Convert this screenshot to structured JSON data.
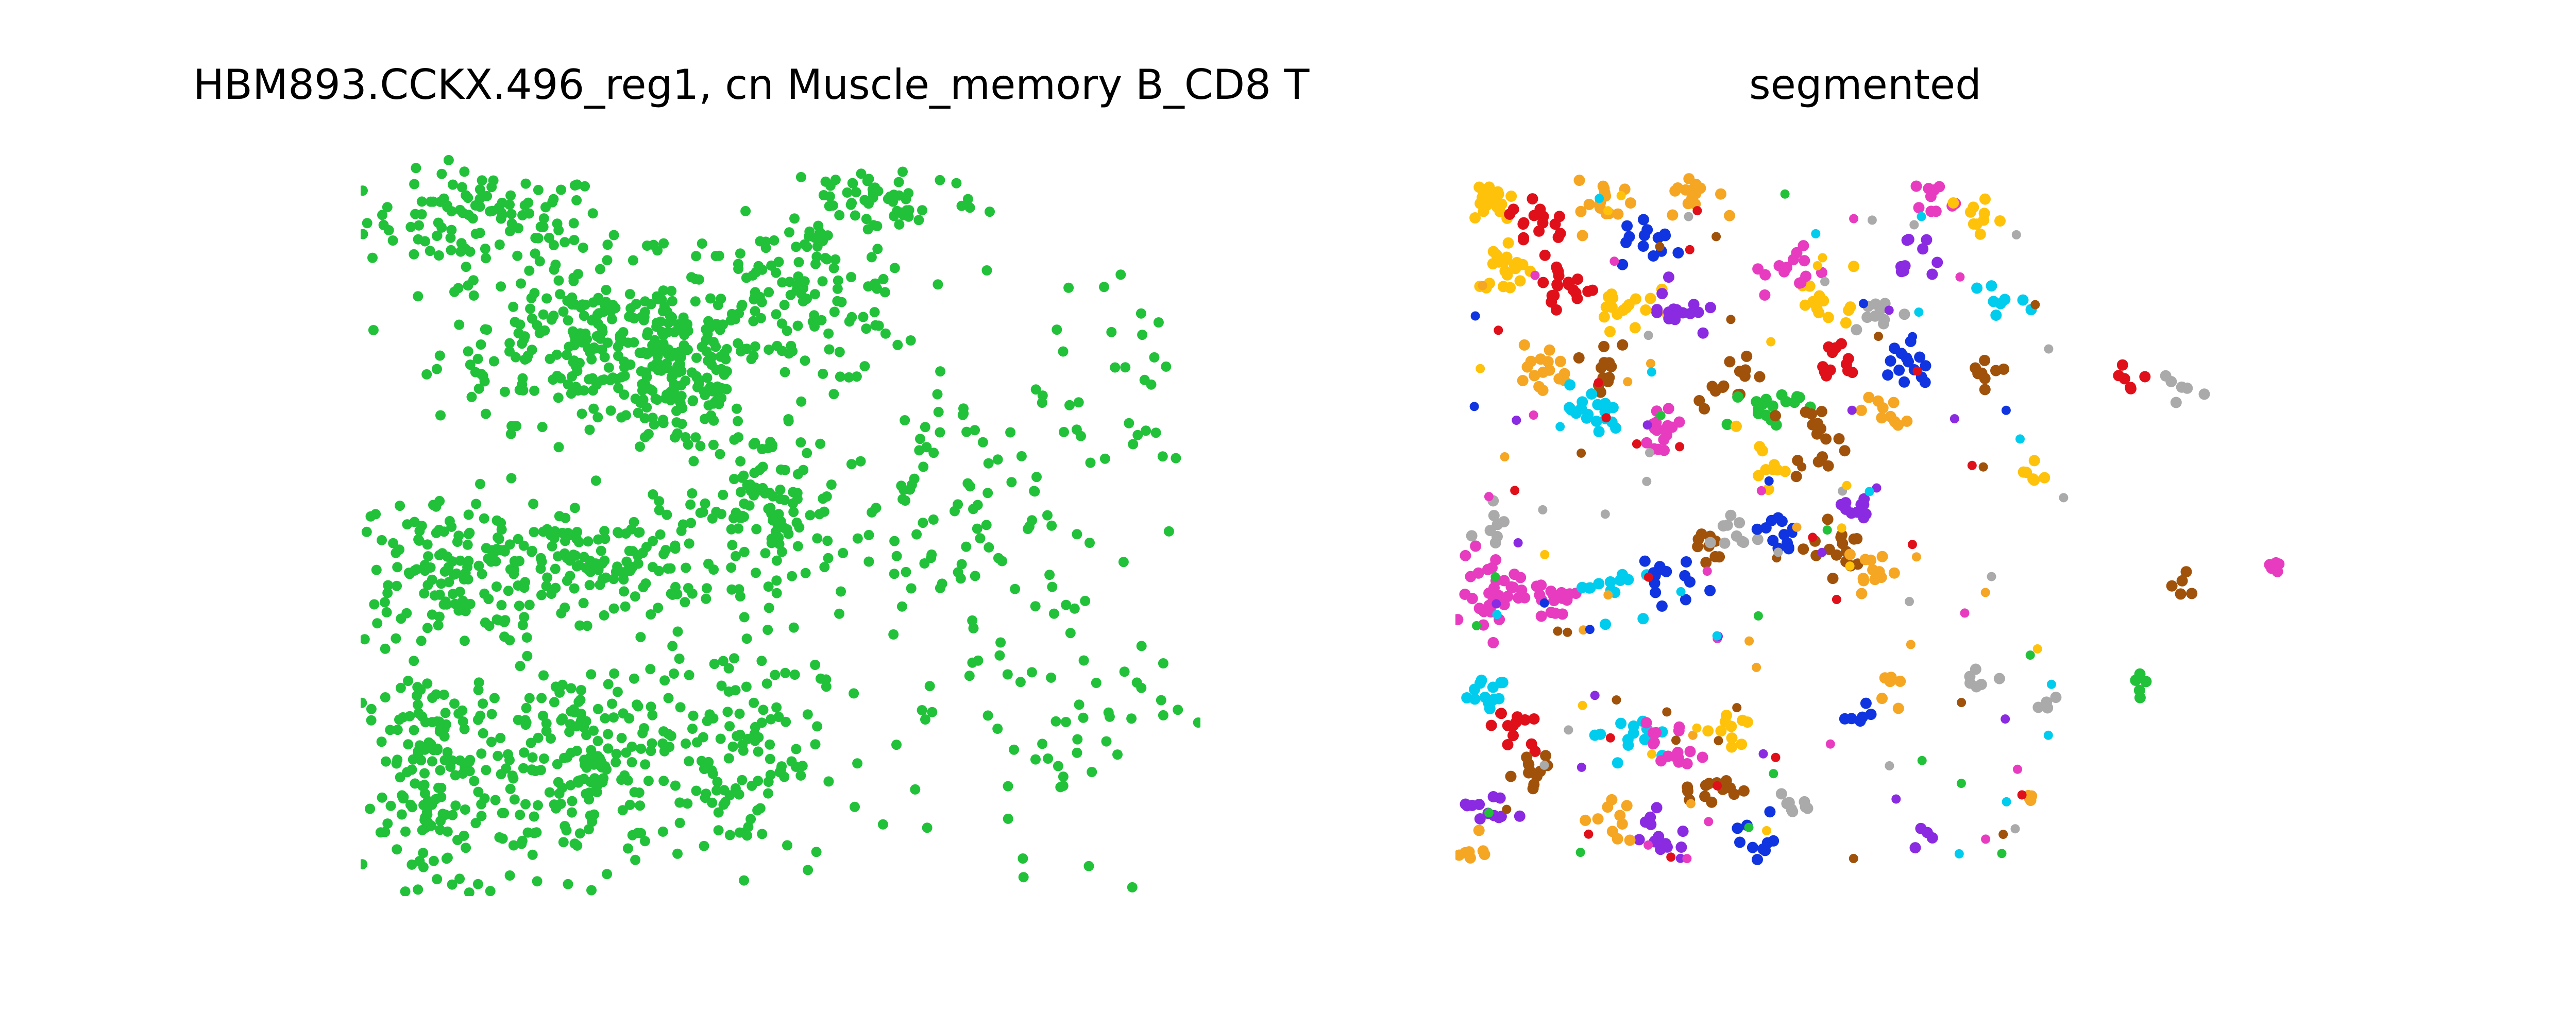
{
  "chart_data": [
    {
      "type": "scatter",
      "title": "HBM893.CCKX.496_reg1, cn Muscle_memory B_CD8 T",
      "axes_visible": false,
      "grid": false,
      "marker_color": "#22c13a",
      "xlim": [
        0,
        1
      ],
      "ylim": [
        0,
        1
      ],
      "density_regions": [
        {
          "cx": 0.15,
          "cy": 0.91,
          "rx": 0.13,
          "ry": 0.06,
          "n": 110
        },
        {
          "cx": 0.27,
          "cy": 0.75,
          "rx": 0.16,
          "ry": 0.1,
          "n": 230
        },
        {
          "cx": 0.38,
          "cy": 0.7,
          "rx": 0.08,
          "ry": 0.1,
          "n": 140
        },
        {
          "cx": 0.52,
          "cy": 0.8,
          "rx": 0.13,
          "ry": 0.1,
          "n": 130
        },
        {
          "cx": 0.62,
          "cy": 0.94,
          "rx": 0.11,
          "ry": 0.05,
          "n": 60
        },
        {
          "cx": 0.1,
          "cy": 0.44,
          "rx": 0.12,
          "ry": 0.09,
          "n": 150
        },
        {
          "cx": 0.3,
          "cy": 0.45,
          "rx": 0.12,
          "ry": 0.07,
          "n": 120
        },
        {
          "cx": 0.48,
          "cy": 0.52,
          "rx": 0.08,
          "ry": 0.1,
          "n": 110
        },
        {
          "cx": 0.09,
          "cy": 0.15,
          "rx": 0.08,
          "ry": 0.16,
          "n": 170
        },
        {
          "cx": 0.27,
          "cy": 0.18,
          "rx": 0.12,
          "ry": 0.14,
          "n": 200
        },
        {
          "cx": 0.45,
          "cy": 0.2,
          "rx": 0.09,
          "ry": 0.14,
          "n": 110
        },
        {
          "cx": 0.68,
          "cy": 0.52,
          "rx": 0.12,
          "ry": 0.14,
          "n": 70
        },
        {
          "cx": 0.8,
          "cy": 0.3,
          "rx": 0.16,
          "ry": 0.28,
          "n": 90
        },
        {
          "cx": 0.9,
          "cy": 0.7,
          "rx": 0.1,
          "ry": 0.2,
          "n": 30
        }
      ]
    },
    {
      "type": "scatter",
      "title": "segmented",
      "axes_visible": false,
      "grid": false,
      "segment_colors": [
        "#f5a623",
        "#1035e0",
        "#8a2be2",
        "#aaaaaa",
        "#22c13a",
        "#00ccee",
        "#ffc20a",
        "#e83cc0",
        "#e0101a",
        "#a0520a"
      ],
      "xlim": [
        0,
        1
      ],
      "ylim": [
        0,
        1
      ],
      "clusters": [
        {
          "cx": 0.04,
          "cy": 0.94,
          "r": 0.025,
          "n": 20,
          "c": 6
        },
        {
          "cx": 0.1,
          "cy": 0.91,
          "r": 0.03,
          "n": 18,
          "c": 8
        },
        {
          "cx": 0.18,
          "cy": 0.93,
          "r": 0.03,
          "n": 16,
          "c": 0
        },
        {
          "cx": 0.28,
          "cy": 0.95,
          "r": 0.025,
          "n": 14,
          "c": 0
        },
        {
          "cx": 0.23,
          "cy": 0.88,
          "r": 0.03,
          "n": 14,
          "c": 1
        },
        {
          "cx": 0.06,
          "cy": 0.85,
          "r": 0.03,
          "n": 22,
          "c": 6
        },
        {
          "cx": 0.13,
          "cy": 0.82,
          "r": 0.03,
          "n": 20,
          "c": 8
        },
        {
          "cx": 0.2,
          "cy": 0.8,
          "r": 0.03,
          "n": 18,
          "c": 6
        },
        {
          "cx": 0.26,
          "cy": 0.79,
          "r": 0.03,
          "n": 16,
          "c": 2
        },
        {
          "cx": 0.18,
          "cy": 0.72,
          "r": 0.025,
          "n": 12,
          "c": 9
        },
        {
          "cx": 0.1,
          "cy": 0.71,
          "r": 0.03,
          "n": 16,
          "c": 0
        },
        {
          "cx": 0.16,
          "cy": 0.65,
          "r": 0.03,
          "n": 18,
          "c": 5
        },
        {
          "cx": 0.24,
          "cy": 0.63,
          "r": 0.03,
          "n": 18,
          "c": 7
        },
        {
          "cx": 0.32,
          "cy": 0.7,
          "r": 0.03,
          "n": 14,
          "c": 9
        },
        {
          "cx": 0.37,
          "cy": 0.66,
          "r": 0.03,
          "n": 18,
          "c": 4
        },
        {
          "cx": 0.42,
          "cy": 0.62,
          "r": 0.03,
          "n": 16,
          "c": 9
        },
        {
          "cx": 0.45,
          "cy": 0.72,
          "r": 0.025,
          "n": 12,
          "c": 8
        },
        {
          "cx": 0.44,
          "cy": 0.8,
          "r": 0.03,
          "n": 14,
          "c": 6
        },
        {
          "cx": 0.5,
          "cy": 0.78,
          "r": 0.025,
          "n": 10,
          "c": 3
        },
        {
          "cx": 0.53,
          "cy": 0.72,
          "r": 0.03,
          "n": 14,
          "c": 1
        },
        {
          "cx": 0.4,
          "cy": 0.84,
          "r": 0.03,
          "n": 14,
          "c": 7
        },
        {
          "cx": 0.56,
          "cy": 0.94,
          "r": 0.025,
          "n": 10,
          "c": 7
        },
        {
          "cx": 0.61,
          "cy": 0.92,
          "r": 0.025,
          "n": 10,
          "c": 6
        },
        {
          "cx": 0.64,
          "cy": 0.8,
          "r": 0.025,
          "n": 8,
          "c": 5
        },
        {
          "cx": 0.54,
          "cy": 0.86,
          "r": 0.025,
          "n": 10,
          "c": 2
        },
        {
          "cx": 0.62,
          "cy": 0.71,
          "r": 0.02,
          "n": 8,
          "c": 9
        },
        {
          "cx": 0.5,
          "cy": 0.65,
          "r": 0.025,
          "n": 10,
          "c": 0
        },
        {
          "cx": 0.36,
          "cy": 0.58,
          "r": 0.025,
          "n": 10,
          "c": 6
        },
        {
          "cx": 0.04,
          "cy": 0.41,
          "r": 0.045,
          "n": 40,
          "c": 7
        },
        {
          "cx": 0.11,
          "cy": 0.4,
          "r": 0.03,
          "n": 16,
          "c": 7
        },
        {
          "cx": 0.18,
          "cy": 0.42,
          "r": 0.03,
          "n": 14,
          "c": 5
        },
        {
          "cx": 0.24,
          "cy": 0.43,
          "r": 0.03,
          "n": 14,
          "c": 1
        },
        {
          "cx": 0.29,
          "cy": 0.47,
          "r": 0.025,
          "n": 10,
          "c": 9
        },
        {
          "cx": 0.33,
          "cy": 0.49,
          "r": 0.025,
          "n": 10,
          "c": 3
        },
        {
          "cx": 0.38,
          "cy": 0.49,
          "r": 0.03,
          "n": 12,
          "c": 1
        },
        {
          "cx": 0.45,
          "cy": 0.47,
          "r": 0.03,
          "n": 16,
          "c": 9
        },
        {
          "cx": 0.49,
          "cy": 0.44,
          "r": 0.025,
          "n": 12,
          "c": 0
        },
        {
          "cx": 0.47,
          "cy": 0.52,
          "r": 0.025,
          "n": 10,
          "c": 2
        },
        {
          "cx": 0.04,
          "cy": 0.49,
          "r": 0.02,
          "n": 8,
          "c": 3
        },
        {
          "cx": 0.03,
          "cy": 0.28,
          "r": 0.025,
          "n": 14,
          "c": 5
        },
        {
          "cx": 0.07,
          "cy": 0.22,
          "r": 0.025,
          "n": 12,
          "c": 8
        },
        {
          "cx": 0.09,
          "cy": 0.16,
          "r": 0.025,
          "n": 12,
          "c": 9
        },
        {
          "cx": 0.04,
          "cy": 0.12,
          "r": 0.025,
          "n": 12,
          "c": 2
        },
        {
          "cx": 0.02,
          "cy": 0.06,
          "r": 0.02,
          "n": 8,
          "c": 0
        },
        {
          "cx": 0.2,
          "cy": 0.22,
          "r": 0.03,
          "n": 14,
          "c": 5
        },
        {
          "cx": 0.26,
          "cy": 0.2,
          "r": 0.03,
          "n": 16,
          "c": 7
        },
        {
          "cx": 0.3,
          "cy": 0.15,
          "r": 0.03,
          "n": 14,
          "c": 9
        },
        {
          "cx": 0.24,
          "cy": 0.08,
          "r": 0.03,
          "n": 14,
          "c": 2
        },
        {
          "cx": 0.18,
          "cy": 0.1,
          "r": 0.025,
          "n": 10,
          "c": 0
        },
        {
          "cx": 0.33,
          "cy": 0.23,
          "r": 0.025,
          "n": 10,
          "c": 6
        },
        {
          "cx": 0.36,
          "cy": 0.08,
          "r": 0.025,
          "n": 10,
          "c": 1
        },
        {
          "cx": 0.4,
          "cy": 0.12,
          "r": 0.02,
          "n": 8,
          "c": 3
        },
        {
          "cx": 0.47,
          "cy": 0.24,
          "r": 0.02,
          "n": 6,
          "c": 1
        },
        {
          "cx": 0.52,
          "cy": 0.29,
          "r": 0.02,
          "n": 6,
          "c": 0
        },
        {
          "cx": 0.62,
          "cy": 0.3,
          "r": 0.02,
          "n": 6,
          "c": 3
        },
        {
          "cx": 0.68,
          "cy": 0.57,
          "r": 0.02,
          "n": 6,
          "c": 6
        },
        {
          "cx": 0.79,
          "cy": 0.7,
          "r": 0.02,
          "n": 6,
          "c": 8
        },
        {
          "cx": 0.85,
          "cy": 0.68,
          "r": 0.02,
          "n": 6,
          "c": 3
        },
        {
          "cx": 0.86,
          "cy": 0.42,
          "r": 0.015,
          "n": 5,
          "c": 9
        },
        {
          "cx": 0.97,
          "cy": 0.45,
          "r": 0.015,
          "n": 5,
          "c": 7
        },
        {
          "cx": 0.81,
          "cy": 0.28,
          "r": 0.015,
          "n": 5,
          "c": 4
        },
        {
          "cx": 0.7,
          "cy": 0.27,
          "r": 0.015,
          "n": 4,
          "c": 3
        },
        {
          "cx": 0.55,
          "cy": 0.08,
          "r": 0.015,
          "n": 4,
          "c": 2
        },
        {
          "cx": 0.67,
          "cy": 0.14,
          "r": 0.015,
          "n": 4,
          "c": 0
        }
      ],
      "scatter_points": 160
    }
  ],
  "panels": {
    "left_title": "HBM893.CCKX.496_reg1, cn Muscle_memory B_CD8 T",
    "right_title": "segmented"
  }
}
